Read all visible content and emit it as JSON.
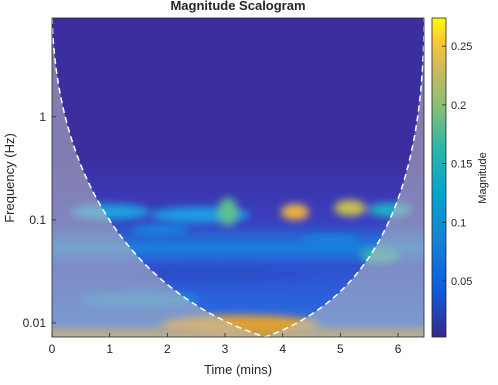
{
  "chart_data": {
    "type": "scalogram",
    "title": "Magnitude Scalogram",
    "x_label": "Time (mins)",
    "y_label": "Frequency (Hz)",
    "xlim": [
      0,
      6.45
    ],
    "xticks": [
      0,
      1,
      2,
      3,
      4,
      5,
      6
    ],
    "ylim": [
      0.0073,
      9.1
    ],
    "yticks": [
      0.01,
      0.1,
      1
    ],
    "y_scale": "log",
    "colorbar": {
      "label": "Magnitude",
      "lim": [
        0.0023,
        0.274
      ],
      "ticks": [
        0.05,
        0.1,
        0.15,
        0.2,
        0.25
      ]
    }
  }
}
